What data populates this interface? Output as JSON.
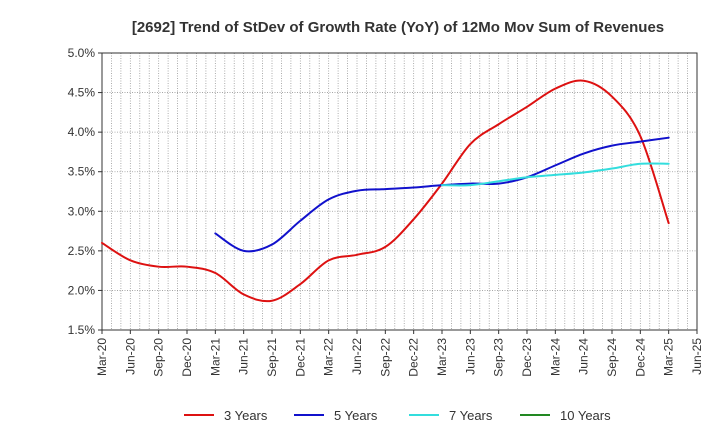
{
  "chart_data": {
    "type": "line",
    "title": "[2692]  Trend of StDev of Growth Rate (YoY) of 12Mo Mov Sum of Revenues",
    "xlabel": "",
    "ylabel": "",
    "ylim": [
      1.5,
      5.0
    ],
    "y_ticks": [
      1.5,
      2.0,
      2.5,
      3.0,
      3.5,
      4.0,
      4.5,
      5.0
    ],
    "y_tick_labels": [
      "1.5%",
      "2.0%",
      "2.5%",
      "3.0%",
      "3.5%",
      "4.0%",
      "4.5%",
      "5.0%"
    ],
    "categories": [
      "Mar-20",
      "Jun-20",
      "Sep-20",
      "Dec-20",
      "Mar-21",
      "Jun-21",
      "Sep-21",
      "Dec-21",
      "Mar-22",
      "Jun-22",
      "Sep-22",
      "Dec-22",
      "Mar-23",
      "Jun-23",
      "Sep-23",
      "Dec-23",
      "Mar-24",
      "Jun-24",
      "Sep-24",
      "Dec-24",
      "Mar-25",
      "Jun-25"
    ],
    "grid": true,
    "legend_position": "bottom",
    "series": [
      {
        "name": "3 Years",
        "color": "#dd1111",
        "values": [
          2.6,
          2.38,
          2.3,
          2.3,
          2.22,
          1.95,
          1.87,
          2.08,
          2.38,
          2.45,
          2.55,
          2.9,
          3.35,
          3.85,
          4.1,
          4.32,
          4.55,
          4.65,
          4.45,
          3.95,
          2.85,
          null
        ]
      },
      {
        "name": "5 Years",
        "color": "#1111cc",
        "values": [
          null,
          null,
          null,
          null,
          2.72,
          2.5,
          2.58,
          2.88,
          3.15,
          3.26,
          3.28,
          3.3,
          3.33,
          3.35,
          3.35,
          3.43,
          3.58,
          3.73,
          3.83,
          3.88,
          3.93,
          null
        ]
      },
      {
        "name": "7 Years",
        "color": "#33dddd",
        "values": [
          null,
          null,
          null,
          null,
          null,
          null,
          null,
          null,
          null,
          null,
          null,
          null,
          3.33,
          3.33,
          3.38,
          3.43,
          3.46,
          3.49,
          3.54,
          3.6,
          3.6,
          null
        ]
      },
      {
        "name": "10 Years",
        "color": "#228822",
        "values": [
          null,
          null,
          null,
          null,
          null,
          null,
          null,
          null,
          null,
          null,
          null,
          null,
          null,
          null,
          null,
          null,
          null,
          null,
          null,
          null,
          null,
          null
        ]
      }
    ]
  }
}
